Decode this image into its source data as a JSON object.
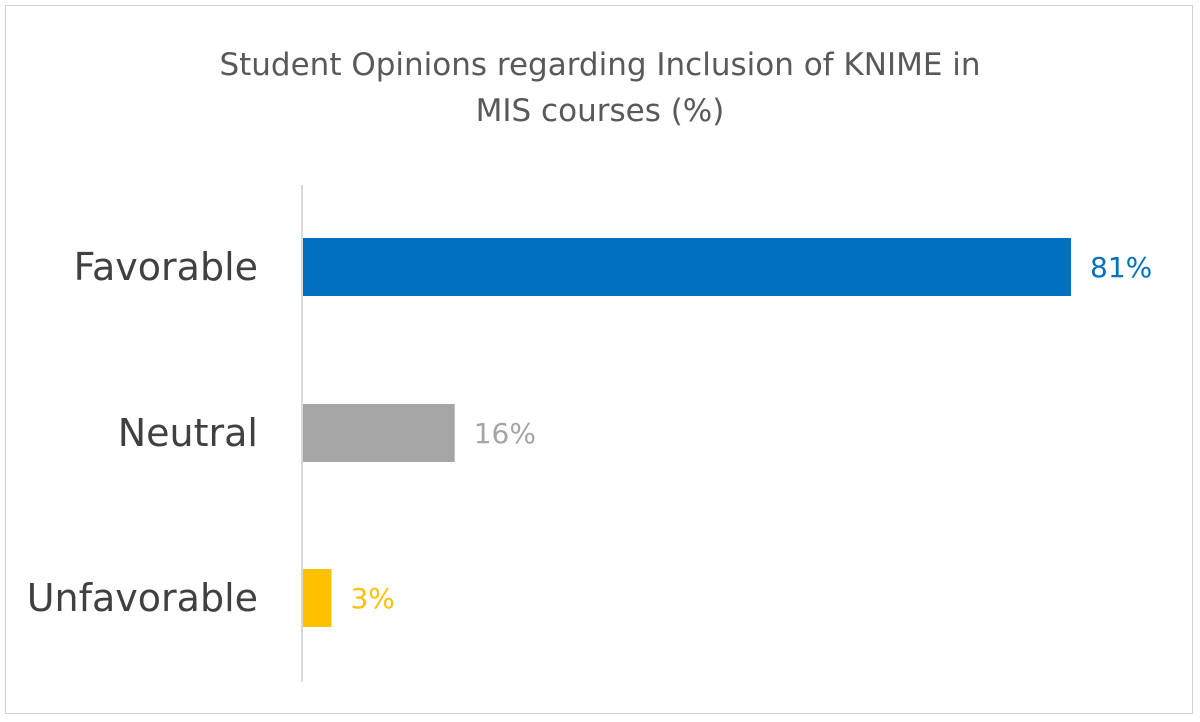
{
  "chart_data": {
    "type": "bar",
    "orientation": "horizontal",
    "title_lines": [
      "Student Opinions regarding Inclusion of KNIME in",
      "MIS courses (%)"
    ],
    "categories": [
      "Favorable",
      "Neutral",
      "Unfavorable"
    ],
    "values": [
      81,
      16,
      3
    ],
    "data_labels": [
      "81%",
      "16%",
      "3%"
    ],
    "colors": [
      "#0070c0",
      "#a5a5a5",
      "#ffc000"
    ],
    "xlim": [
      0,
      81
    ],
    "grid": false,
    "legend": "none"
  }
}
